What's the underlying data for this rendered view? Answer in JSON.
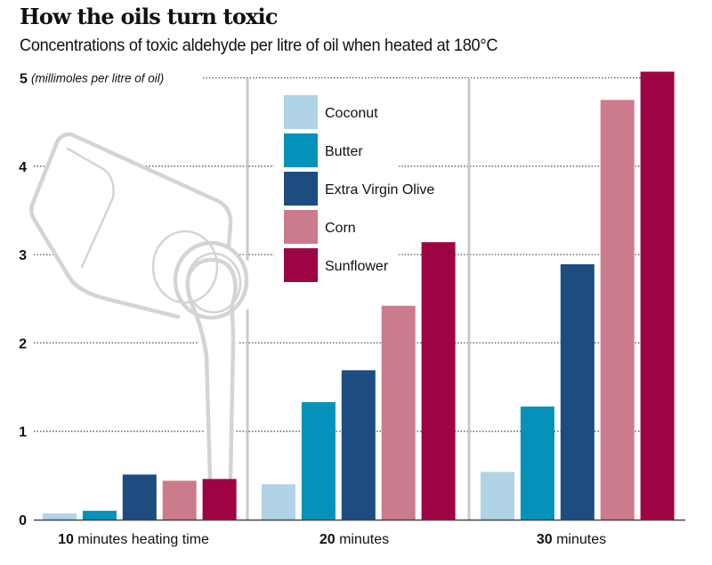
{
  "header": {
    "title": "How the oils turn toxic",
    "subtitle": "Concentrations of toxic aldehyde per litre of oil when heated at 180°C"
  },
  "illustration": {
    "icon": "oil-bottle-pouring-icon"
  },
  "chart_data": {
    "type": "bar",
    "title": "How the oils turn toxic",
    "subtitle": "Concentrations of toxic aldehyde per litre of oil when heated at 180°C",
    "xlabel": "",
    "ylabel": "(millimoles per litre of oil)",
    "ylim": [
      0,
      5
    ],
    "yticks": [
      "0",
      "1",
      "2",
      "3",
      "4",
      "5"
    ],
    "grid": true,
    "legend_position": "top-center",
    "categories": [
      {
        "num": "10",
        "text": " minutes heating time"
      },
      {
        "num": "20",
        "text": " minutes"
      },
      {
        "num": "30",
        "text": " minutes"
      }
    ],
    "series": [
      {
        "name": "Coconut",
        "color": "#b0d4e6",
        "values": [
          0.07,
          0.4,
          0.54
        ]
      },
      {
        "name": "Butter",
        "color": "#0592ba",
        "values": [
          0.1,
          1.33,
          1.28
        ]
      },
      {
        "name": "Extra Virgin Olive",
        "color": "#1c4c80",
        "values": [
          0.51,
          1.69,
          2.89
        ]
      },
      {
        "name": "Corn",
        "color": "#cc7b8c",
        "values": [
          0.44,
          2.42,
          4.75
        ]
      },
      {
        "name": "Sunflower",
        "color": "#9e0444",
        "values": [
          0.46,
          3.14,
          5.07
        ]
      }
    ]
  }
}
